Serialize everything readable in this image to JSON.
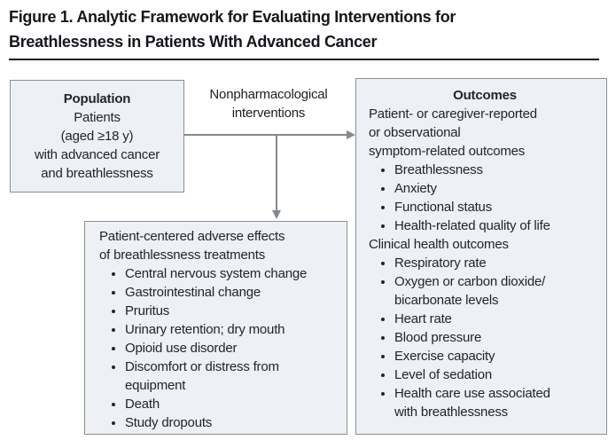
{
  "figure": {
    "title": "Figure 1. Analytic Framework for Evaluating Interventions for\nBreathlessness in Patients With Advanced Cancer"
  },
  "population_box": {
    "header": "Population",
    "body": "Patients\n(aged ≥18 y)\nwith advanced cancer\nand breathlessness"
  },
  "intervention_label": "Nonpharmacological\ninterventions",
  "adverse_box": {
    "header": "Patient-centered adverse effects\nof breathlessness treatments",
    "bullets": [
      "Central nervous system change",
      "Gastrointestinal change",
      "Pruritus",
      "Urinary retention; dry mouth",
      "Opioid use disorder",
      "Discomfort or distress from\nequipment",
      "Death",
      "Study dropouts"
    ]
  },
  "outcomes_box": {
    "header": "Outcomes",
    "subheader_symptom": "Patient- or caregiver-reported\nor observational\nsymptom-related outcomes",
    "symptom_bullets": [
      "Breathlessness",
      "Anxiety",
      "Functional status",
      "Health-related quality of life"
    ],
    "subheader_clinical": "Clinical health outcomes",
    "clinical_bullets": [
      "Respiratory rate",
      "Oxygen or carbon dioxide/\nbicarbonate levels",
      "Heart rate",
      "Blood pressure",
      "Exercise capacity",
      "Level of sedation",
      "Health care use associated\nwith breathlessness"
    ]
  },
  "colors": {
    "box_fill": "#edf0f4",
    "box_border": "#8a9097",
    "arrow": "#84898e",
    "text": "#20242e",
    "title_text": "#14161c"
  }
}
